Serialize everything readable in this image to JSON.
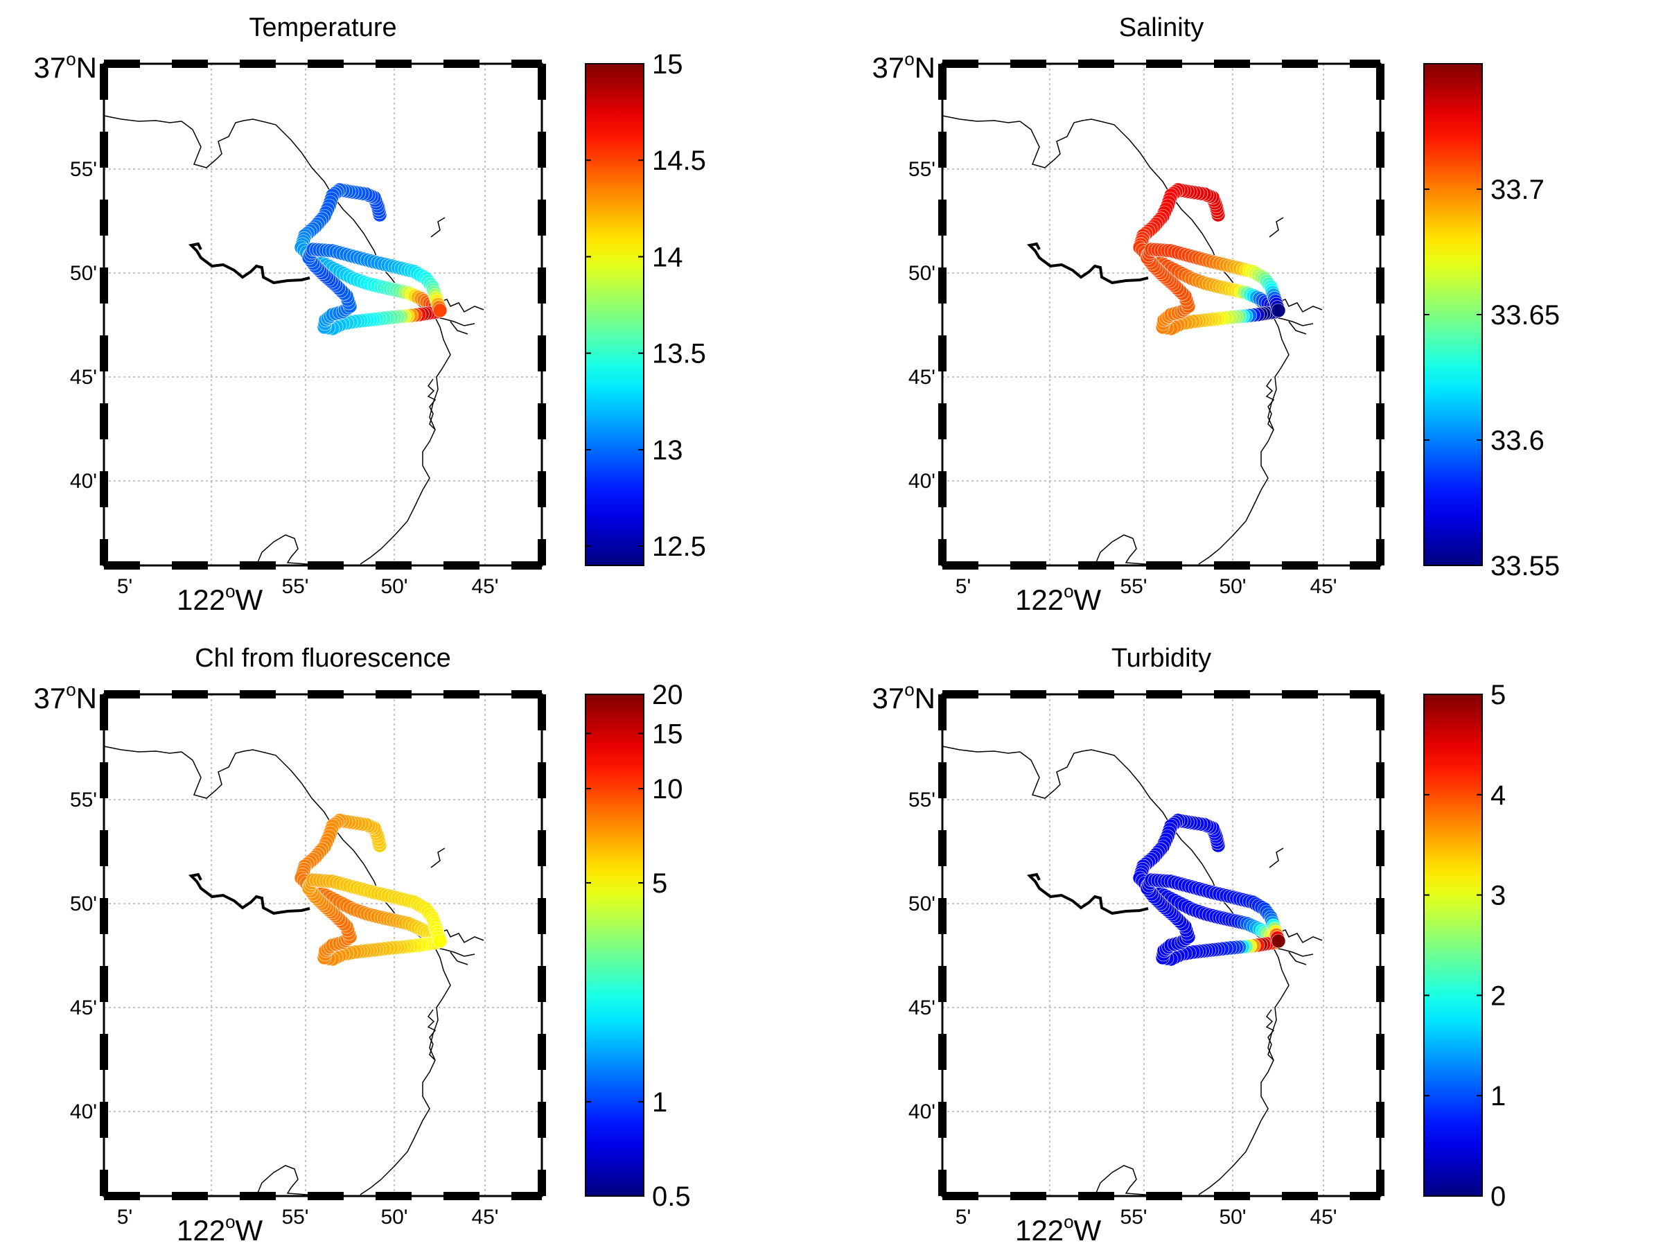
{
  "colors": {
    "colormap": "jet",
    "coast": "#000000",
    "grid": "#b0b0b0",
    "track_outline": "#ffffff"
  },
  "map": {
    "lat_major": "37",
    "lon_major": "122",
    "lat_hemisphere": "N",
    "lon_hemisphere": "W",
    "degree_symbol": "o",
    "lat_minute_labels": [
      "55'",
      "50'",
      "45'",
      "40'"
    ],
    "lon_minute_labels": [
      "5'",
      "55'",
      "50'",
      "45'"
    ]
  },
  "panels": [
    {
      "id": "temperature",
      "title": "Temperature",
      "colorbar": {
        "scale": "linear",
        "min": 12.4,
        "max": 15,
        "ticks": [
          {
            "v": 15,
            "label": "15"
          },
          {
            "v": 14.5,
            "label": "14.5"
          },
          {
            "v": 14,
            "label": "14"
          },
          {
            "v": 13.5,
            "label": "13.5"
          },
          {
            "v": 13,
            "label": "13"
          },
          {
            "v": 12.5,
            "label": "12.5"
          }
        ]
      },
      "track_values": [
        12.9,
        12.9,
        12.95,
        12.95,
        12.95,
        13.0,
        13.1,
        13.15,
        13.2,
        13.3,
        13.45,
        13.6,
        14.3,
        14.6,
        14.8,
        13.7,
        13.45,
        13.3,
        13.2,
        13.1,
        13.0,
        12.95,
        12.9,
        12.95,
        12.95,
        13.0,
        13.05,
        13.1,
        13.2,
        13.35,
        13.6,
        14.5
      ]
    },
    {
      "id": "salinity",
      "title": "Salinity",
      "colorbar": {
        "scale": "linear",
        "min": 33.55,
        "max": 33.75,
        "ticks": [
          {
            "v": 33.7,
            "label": "33.7"
          },
          {
            "v": 33.65,
            "label": "33.65"
          },
          {
            "v": 33.6,
            "label": "33.6"
          },
          {
            "v": 33.55,
            "label": "33.55"
          }
        ]
      },
      "track_values": [
        33.73,
        33.73,
        33.73,
        33.725,
        33.725,
        33.72,
        33.715,
        33.71,
        33.71,
        33.7,
        33.69,
        33.68,
        33.6,
        33.56,
        33.55,
        33.65,
        33.68,
        33.69,
        33.7,
        33.7,
        33.705,
        33.71,
        33.71,
        33.71,
        33.715,
        33.715,
        33.71,
        33.7,
        33.69,
        33.66,
        33.62,
        33.55
      ]
    },
    {
      "id": "chl",
      "title": "Chl from fluorescence",
      "colorbar": {
        "scale": "log",
        "min": 0.5,
        "max": 20,
        "ticks": [
          {
            "v": 20,
            "label": "20"
          },
          {
            "v": 15,
            "label": "15"
          },
          {
            "v": 10,
            "label": "10"
          },
          {
            "v": 5,
            "label": "5"
          },
          {
            "v": 1,
            "label": "1"
          },
          {
            "v": 0.5,
            "label": "0.5"
          }
        ]
      },
      "track_values": [
        6,
        6.5,
        7,
        7.5,
        7.8,
        8,
        8.2,
        8.5,
        8.3,
        8,
        7.5,
        7,
        6,
        5.5,
        5,
        6,
        6.5,
        7,
        7.5,
        8,
        8.2,
        8.5,
        8,
        7.5,
        7,
        6.5,
        6,
        6,
        5.8,
        5.5,
        5.2,
        5
      ]
    },
    {
      "id": "turbidity",
      "title": "Turbidity",
      "colorbar": {
        "scale": "linear",
        "min": 0,
        "max": 5,
        "ticks": [
          {
            "v": 5,
            "label": "5"
          },
          {
            "v": 4,
            "label": "4"
          },
          {
            "v": 3,
            "label": "3"
          },
          {
            "v": 2,
            "label": "2"
          },
          {
            "v": 1,
            "label": "1"
          },
          {
            "v": 0,
            "label": "0"
          }
        ]
      },
      "track_values": [
        0.6,
        0.6,
        0.55,
        0.55,
        0.6,
        0.6,
        0.6,
        0.65,
        0.6,
        0.6,
        0.65,
        0.7,
        1.5,
        3.5,
        4.8,
        0.9,
        0.7,
        0.65,
        0.6,
        0.6,
        0.55,
        0.6,
        0.6,
        0.55,
        0.6,
        0.6,
        0.65,
        0.65,
        0.7,
        0.8,
        1.2,
        5
      ]
    }
  ]
}
